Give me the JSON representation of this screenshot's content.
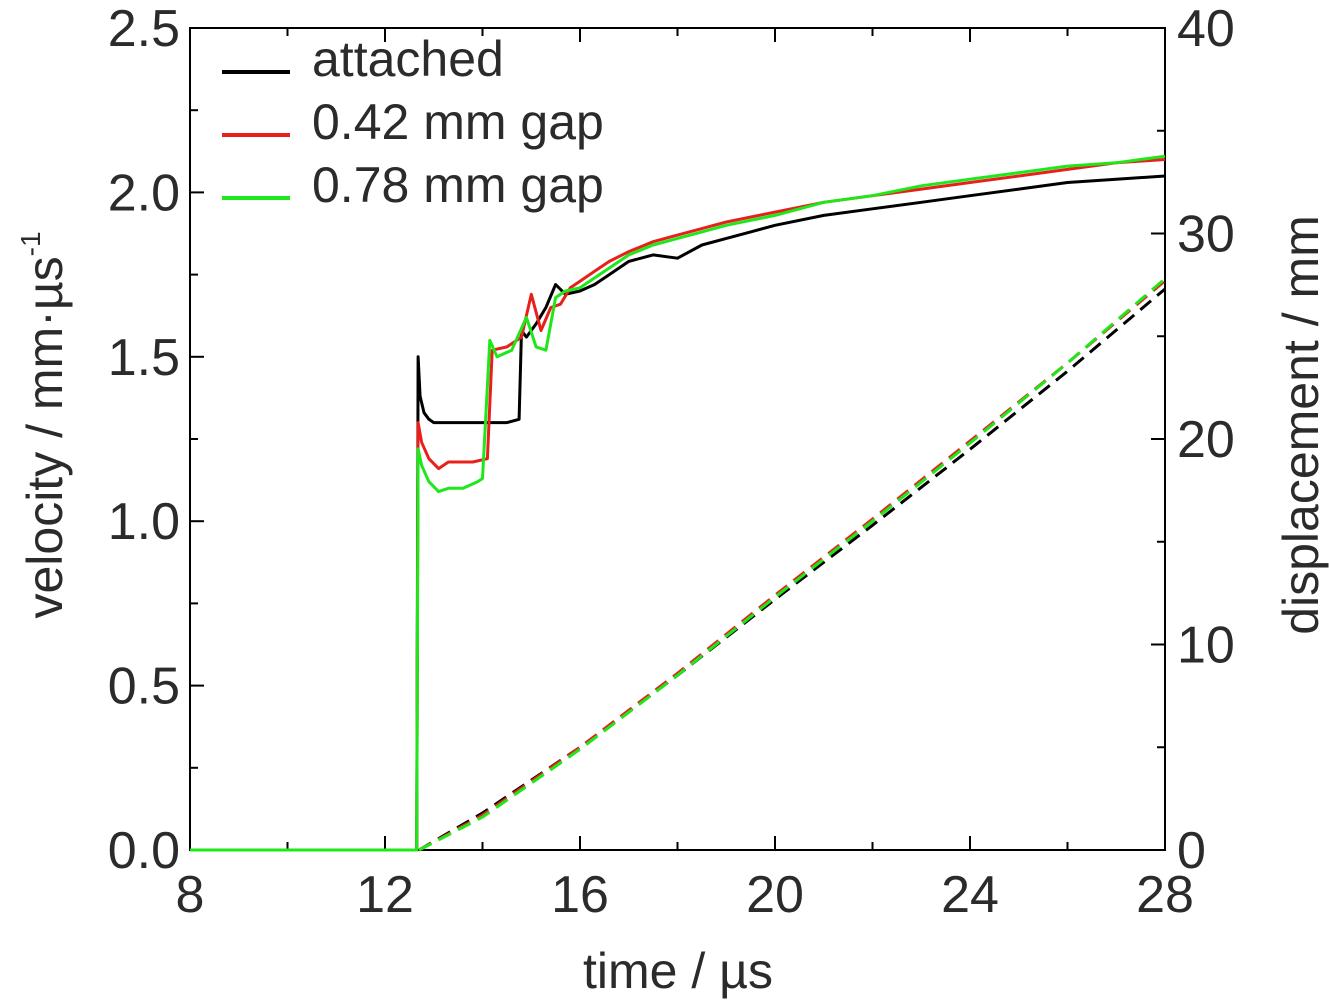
{
  "chart_data": {
    "type": "line",
    "xlabel": "time / µs",
    "ylabel": "velocity / mm·µs",
    "ylabel_superscript": "-1",
    "y2label": "displacement / mm",
    "xlim": [
      8,
      28
    ],
    "ylim": [
      0,
      2.5
    ],
    "y2lim": [
      0,
      40
    ],
    "x_ticks": [
      "8",
      "12",
      "16",
      "20",
      "24",
      "28"
    ],
    "y_ticks": [
      "0.0",
      "0.5",
      "1.0",
      "1.5",
      "2.0",
      "2.5"
    ],
    "y2_ticks": [
      "0",
      "10",
      "20",
      "30",
      "40"
    ],
    "grid": false,
    "legend_position": "top-left",
    "legend": [
      {
        "label": "attached",
        "color": "#000000"
      },
      {
        "label": "0.42 mm gap",
        "color": "#e8201c"
      },
      {
        "label": "0.78 mm gap",
        "color": "#1ee81a"
      }
    ],
    "velocity_series": [
      {
        "name": "attached",
        "color": "#000000",
        "x": [
          8,
          12.65,
          12.68,
          12.72,
          12.8,
          12.9,
          13.0,
          13.2,
          13.5,
          14.0,
          14.5,
          14.75,
          14.8,
          14.9,
          15.1,
          15.3,
          15.5,
          15.7,
          16.0,
          16.3,
          16.6,
          17.0,
          17.5,
          18.0,
          18.5,
          19.0,
          19.5,
          20.0,
          21.0,
          22.0,
          23.0,
          24.0,
          25.0,
          26.0,
          27.0,
          28.0
        ],
        "y": [
          0,
          0,
          1.5,
          1.38,
          1.33,
          1.31,
          1.3,
          1.3,
          1.3,
          1.3,
          1.3,
          1.31,
          1.58,
          1.56,
          1.6,
          1.65,
          1.72,
          1.69,
          1.7,
          1.72,
          1.75,
          1.79,
          1.81,
          1.8,
          1.84,
          1.86,
          1.88,
          1.9,
          1.93,
          1.95,
          1.97,
          1.99,
          2.01,
          2.03,
          2.04,
          2.05
        ]
      },
      {
        "name": "0.42 mm gap",
        "color": "#e8201c",
        "x": [
          8,
          12.65,
          12.68,
          12.75,
          12.9,
          13.1,
          13.3,
          13.5,
          13.8,
          14.1,
          14.2,
          14.5,
          14.8,
          15.0,
          15.2,
          15.4,
          15.6,
          15.8,
          16.0,
          16.3,
          16.6,
          17.0,
          17.5,
          18.0,
          18.5,
          19.0,
          20.0,
          21.0,
          22.0,
          23.0,
          24.0,
          25.0,
          26.0,
          27.0,
          28.0
        ],
        "y": [
          0,
          0,
          1.3,
          1.24,
          1.19,
          1.16,
          1.18,
          1.18,
          1.18,
          1.19,
          1.52,
          1.53,
          1.56,
          1.69,
          1.58,
          1.65,
          1.66,
          1.71,
          1.73,
          1.76,
          1.79,
          1.82,
          1.85,
          1.87,
          1.89,
          1.91,
          1.94,
          1.97,
          1.99,
          2.01,
          2.03,
          2.05,
          2.07,
          2.09,
          2.1
        ]
      },
      {
        "name": "0.78 mm gap",
        "color": "#1ee81a",
        "x": [
          8,
          12.65,
          12.68,
          12.75,
          12.9,
          13.1,
          13.3,
          13.6,
          13.9,
          14.0,
          14.15,
          14.3,
          14.6,
          14.9,
          15.1,
          15.3,
          15.5,
          15.7,
          16.0,
          16.3,
          16.6,
          17.0,
          17.5,
          18.0,
          18.5,
          19.0,
          20.0,
          21.0,
          22.0,
          23.0,
          24.0,
          25.0,
          26.0,
          27.0,
          28.0
        ],
        "y": [
          0,
          0,
          1.22,
          1.17,
          1.12,
          1.09,
          1.1,
          1.1,
          1.12,
          1.13,
          1.55,
          1.5,
          1.52,
          1.62,
          1.53,
          1.52,
          1.68,
          1.7,
          1.71,
          1.74,
          1.77,
          1.81,
          1.84,
          1.86,
          1.88,
          1.9,
          1.93,
          1.97,
          1.99,
          2.02,
          2.04,
          2.06,
          2.08,
          2.09,
          2.11
        ]
      }
    ],
    "displacement_series": [
      {
        "name": "attached",
        "color": "#000000",
        "x": [
          12.7,
          14,
          16,
          18,
          20,
          22,
          24,
          26,
          28
        ],
        "y": [
          0,
          1.8,
          5.0,
          8.5,
          12.2,
          15.8,
          19.5,
          23.3,
          27.3
        ]
      },
      {
        "name": "0.42 mm gap",
        "color": "#e8201c",
        "x": [
          12.7,
          14,
          16,
          18,
          20,
          22,
          24,
          26,
          28
        ],
        "y": [
          0,
          1.7,
          5.0,
          8.6,
          12.4,
          16.1,
          19.9,
          23.7,
          27.7
        ]
      },
      {
        "name": "0.78 mm gap",
        "color": "#1ee81a",
        "x": [
          12.7,
          14,
          16,
          18,
          20,
          22,
          24,
          26,
          28
        ],
        "y": [
          0,
          1.6,
          4.9,
          8.5,
          12.3,
          16.0,
          19.8,
          23.7,
          27.8
        ]
      }
    ]
  }
}
